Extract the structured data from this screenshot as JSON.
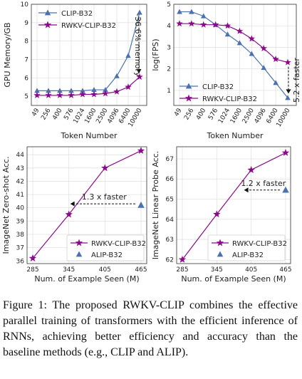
{
  "colors": {
    "clip": "#4a72b0",
    "rwkv": "#8b0a8b",
    "grid": "#e2e2e2",
    "axis": "#333333"
  },
  "caption": "Figure 1: The proposed RWKV-CLIP combines the effective parallel training of transformers with the efficient inference of RNNs, achieving better efficiency and accuracy than the baseline methods (e.g., CLIP and ALIP).",
  "chart_data": [
    {
      "type": "line",
      "xlabel": "Token Number",
      "ylabel": "GPU Memory/GB",
      "categories": [
        "49",
        "256",
        "400",
        "576",
        "1024",
        "1600",
        "2500",
        "4096",
        "6400",
        "10000"
      ],
      "ylim": [
        4.5,
        10
      ],
      "yticks": [
        5,
        6,
        7,
        8,
        9,
        10
      ],
      "grid": true,
      "legend": "top-left",
      "series": [
        {
          "name": "CLIP-B32",
          "marker": "triangle",
          "color": "#4a72b0",
          "values": [
            5.3,
            5.3,
            5.3,
            5.3,
            5.3,
            5.35,
            5.35,
            6.1,
            7.2,
            9.55
          ]
        },
        {
          "name": "RWKV-CLIP-B32",
          "marker": "star",
          "color": "#8b0a8b",
          "values": [
            5.05,
            5.05,
            5.05,
            5.05,
            5.1,
            5.1,
            5.15,
            5.25,
            5.5,
            6.05
          ]
        }
      ],
      "annotation": "-36.6% memory"
    },
    {
      "type": "line",
      "xlabel": "Token Number",
      "ylabel": "log(FPS)",
      "categories": [
        "49",
        "256",
        "400",
        "576",
        "1024",
        "1600",
        "2500",
        "4096",
        "6400",
        "10000"
      ],
      "ylim": [
        0.3,
        5
      ],
      "yticks": [
        1,
        2,
        3,
        4,
        5
      ],
      "grid": true,
      "legend": "bottom-left",
      "series": [
        {
          "name": "CLIP-B32",
          "marker": "triangle",
          "color": "#4a72b0",
          "values": [
            4.65,
            4.65,
            4.45,
            4.05,
            3.6,
            3.2,
            2.7,
            2.05,
            1.35,
            0.65
          ]
        },
        {
          "name": "RWKV-CLIP-B32",
          "marker": "star",
          "color": "#8b0a8b",
          "values": [
            4.1,
            4.1,
            4.05,
            4.05,
            4.0,
            3.75,
            3.4,
            2.95,
            2.45,
            2.3
          ]
        }
      ],
      "annotation": "5.2 x faster"
    },
    {
      "type": "line",
      "xlabel": "Num. of Example Seen (M)",
      "ylabel": "ImageNet Zero-shot Acc.",
      "x": [
        285,
        345,
        405,
        465
      ],
      "xlim": [
        280,
        470
      ],
      "ylim": [
        35.8,
        44.6
      ],
      "yticks": [
        36,
        37,
        38,
        39,
        40,
        41,
        42,
        43,
        44
      ],
      "grid": true,
      "legend": "bottom-right",
      "series": [
        {
          "name": "RWKV-CLIP-B32",
          "marker": "star",
          "color": "#8b0a8b",
          "x": [
            285,
            345,
            405,
            465
          ],
          "values": [
            36.2,
            39.5,
            43.0,
            44.3
          ]
        },
        {
          "name": "ALIP-B32",
          "marker": "triangle",
          "color": "#4a72b0",
          "x": [
            465
          ],
          "values": [
            40.2
          ]
        }
      ],
      "annotation": "1.3 x faster",
      "arrow_from_x": 465,
      "arrow_to_x": 345,
      "arrow_y": 40.3
    },
    {
      "type": "line",
      "xlabel": "Num. of Example Seen (M)",
      "ylabel": "ImageNet Linear Probe Acc.",
      "x": [
        285,
        345,
        405,
        465
      ],
      "xlim": [
        280,
        470
      ],
      "ylim": [
        61.8,
        67.6
      ],
      "yticks": [
        62,
        63,
        64,
        65,
        66,
        67
      ],
      "grid": true,
      "legend": "bottom-right",
      "series": [
        {
          "name": "RWKV-CLIP-B32",
          "marker": "star",
          "color": "#8b0a8b",
          "x": [
            285,
            345,
            405,
            465
          ],
          "values": [
            62.0,
            64.25,
            66.45,
            67.3
          ]
        },
        {
          "name": "ALIP-B32",
          "marker": "triangle",
          "color": "#4a72b0",
          "x": [
            465
          ],
          "values": [
            65.45
          ]
        }
      ],
      "annotation": "1.2 x faster",
      "arrow_from_x": 465,
      "arrow_to_x": 390,
      "arrow_y": 65.45
    }
  ]
}
